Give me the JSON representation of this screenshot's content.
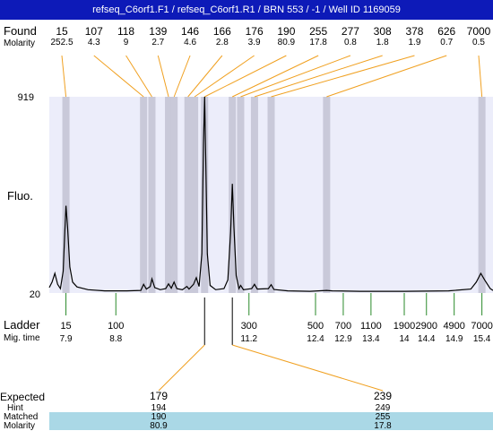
{
  "title": "refseq_C6orf1.F1 / refseq_C6orf1.R1 / BRN 553 / -1 / Well ID 1169059",
  "labels": {
    "found": "Found",
    "molarity": "Molarity",
    "fluo": "Fluo.",
    "ladder": "Ladder",
    "mig_time": "Mig. time",
    "expected": "Expected",
    "hint": "Hint",
    "matched": "Matched",
    "molarity_bottom": "Molarity"
  },
  "colors": {
    "title_bg": "#0d1ab8",
    "plot_bg": "#ecedfa",
    "peak_band": "#c9c9d9",
    "found_line": "#f0a020",
    "ladder_line": "#2a8a2a",
    "highlight_row": "#aad8e6"
  },
  "chart_data": {
    "type": "line",
    "title": "refseq_C6orf1.F1 / refseq_C6orf1.R1 / BRN 553 / -1 / Well ID 1169059",
    "ylabel": "Fluo.",
    "ylim": [
      20,
      919
    ],
    "y_ticks": [
      "919",
      "20"
    ],
    "xlim_migration_time": [
      7.6,
      15.6
    ],
    "found_peaks": [
      {
        "size": "15",
        "molarity": "252.5",
        "mig_time": 7.9
      },
      {
        "size": "107",
        "molarity": "4.3",
        "mig_time": 9.3
      },
      {
        "size": "118",
        "molarity": "9",
        "mig_time": 9.45
      },
      {
        "size": "139",
        "molarity": "2.7",
        "mig_time": 9.75
      },
      {
        "size": "146",
        "molarity": "4.6",
        "mig_time": 9.85
      },
      {
        "size": "166",
        "molarity": "2.8",
        "mig_time": 10.1
      },
      {
        "size": "176",
        "molarity": "3.9",
        "mig_time": 10.22
      },
      {
        "size": "190",
        "molarity": "80.9",
        "mig_time": 10.4
      },
      {
        "size": "255",
        "molarity": "17.8",
        "mig_time": 10.9
      },
      {
        "size": "277",
        "molarity": "0.8",
        "mig_time": 11.05
      },
      {
        "size": "308",
        "molarity": "1.8",
        "mig_time": 11.3
      },
      {
        "size": "378",
        "molarity": "1.9",
        "mig_time": 11.6
      },
      {
        "size": "626",
        "molarity": "0.7",
        "mig_time": 12.6
      },
      {
        "size": "7000",
        "molarity": "0.5",
        "mig_time": 15.4
      }
    ],
    "ladder": [
      {
        "size": "15",
        "mig_time": "7.9",
        "t": 7.9
      },
      {
        "size": "100",
        "mig_time": "8.8",
        "t": 8.8
      },
      {
        "size": "300",
        "mig_time": "11.2",
        "t": 11.2
      },
      {
        "size": "500",
        "mig_time": "12.4",
        "t": 12.4
      },
      {
        "size": "700",
        "mig_time": "12.9",
        "t": 12.9
      },
      {
        "size": "1100",
        "mig_time": "13.4",
        "t": 13.4
      },
      {
        "size": "1900",
        "mig_time": "14",
        "t": 14.0
      },
      {
        "size": "2900",
        "mig_time": "14.4",
        "t": 14.4
      },
      {
        "size": "4900",
        "mig_time": "14.9",
        "t": 14.9
      },
      {
        "size": "7000",
        "mig_time": "15.4",
        "t": 15.4
      }
    ],
    "trace": [
      [
        7.6,
        45
      ],
      [
        7.65,
        70
      ],
      [
        7.7,
        110
      ],
      [
        7.75,
        60
      ],
      [
        7.8,
        40
      ],
      [
        7.85,
        120
      ],
      [
        7.88,
        300
      ],
      [
        7.9,
        420
      ],
      [
        7.93,
        320
      ],
      [
        7.97,
        140
      ],
      [
        8.02,
        70
      ],
      [
        8.1,
        48
      ],
      [
        8.3,
        35
      ],
      [
        8.6,
        30
      ],
      [
        9.0,
        30
      ],
      [
        9.25,
        32
      ],
      [
        9.3,
        60
      ],
      [
        9.35,
        38
      ],
      [
        9.42,
        50
      ],
      [
        9.45,
        85
      ],
      [
        9.5,
        45
      ],
      [
        9.6,
        35
      ],
      [
        9.7,
        40
      ],
      [
        9.75,
        62
      ],
      [
        9.8,
        42
      ],
      [
        9.85,
        70
      ],
      [
        9.9,
        40
      ],
      [
        10.0,
        35
      ],
      [
        10.08,
        50
      ],
      [
        10.12,
        38
      ],
      [
        10.2,
        60
      ],
      [
        10.25,
        90
      ],
      [
        10.3,
        50
      ],
      [
        10.35,
        200
      ],
      [
        10.38,
        700
      ],
      [
        10.4,
        919
      ],
      [
        10.42,
        640
      ],
      [
        10.45,
        200
      ],
      [
        10.5,
        55
      ],
      [
        10.6,
        35
      ],
      [
        10.75,
        40
      ],
      [
        10.82,
        80
      ],
      [
        10.87,
        300
      ],
      [
        10.9,
        520
      ],
      [
        10.93,
        320
      ],
      [
        10.97,
        100
      ],
      [
        11.02,
        40
      ],
      [
        11.05,
        55
      ],
      [
        11.1,
        35
      ],
      [
        11.25,
        40
      ],
      [
        11.3,
        60
      ],
      [
        11.35,
        38
      ],
      [
        11.55,
        40
      ],
      [
        11.6,
        58
      ],
      [
        11.65,
        36
      ],
      [
        11.9,
        30
      ],
      [
        12.3,
        28
      ],
      [
        12.6,
        32
      ],
      [
        12.7,
        30
      ],
      [
        13.2,
        28
      ],
      [
        14.0,
        28
      ],
      [
        14.8,
        30
      ],
      [
        15.2,
        38
      ],
      [
        15.3,
        70
      ],
      [
        15.38,
        110
      ],
      [
        15.45,
        80
      ],
      [
        15.55,
        40
      ],
      [
        15.6,
        32
      ]
    ],
    "matched": [
      {
        "expected": "179",
        "hint": "194",
        "matched": "190",
        "molarity": "80.9",
        "mig_time": 10.4
      },
      {
        "expected": "239",
        "hint": "249",
        "matched": "255",
        "molarity": "17.8",
        "mig_time": 10.9
      }
    ]
  }
}
